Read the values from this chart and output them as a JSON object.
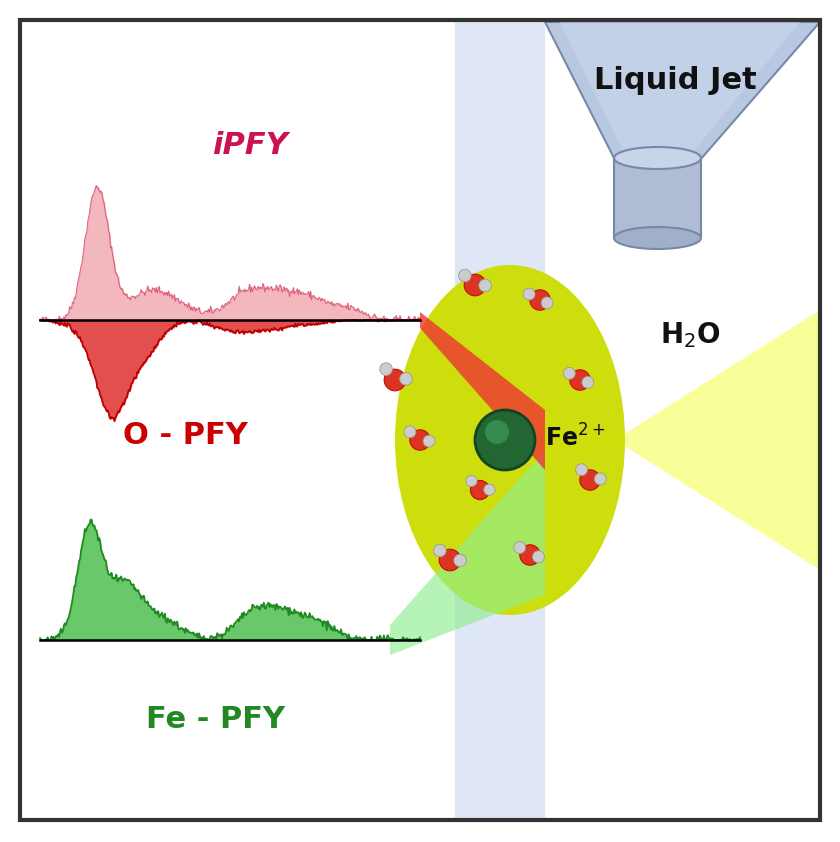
{
  "bg_color": "#ffffff",
  "border_color": "#333333",
  "ipfy_color": "#f0a0a8",
  "ipfy_line_color": "#cc2255",
  "opfy_color": "#dd2222",
  "opfy_line_color": "#bb0000",
  "fe_pfy_color": "#33aa33",
  "fe_pfy_fill_color": "#55cc55",
  "red_beam_color": "#ee3333",
  "green_beam_fill": "#aaddaa",
  "liquid_jet_label": "Liquid Jet",
  "ipfy_label": "iPFY",
  "opfy_label": "O - PFY",
  "fe_pfy_label": "Fe - PFY",
  "h2o_label": "H₂O",
  "fe_label": "Fe"
}
